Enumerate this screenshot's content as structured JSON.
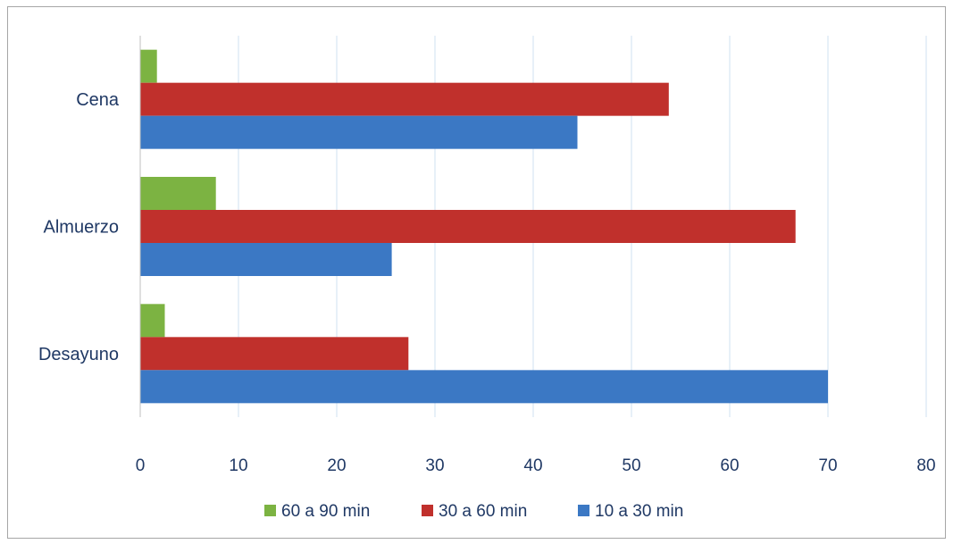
{
  "chart_data": {
    "type": "bar",
    "orientation": "horizontal",
    "categories": [
      "Desayuno",
      "Almuerzo",
      "Cena"
    ],
    "series": [
      {
        "name": "60 a 90 min",
        "color": "#7cb342",
        "values": [
          2.5,
          7.7,
          1.7
        ]
      },
      {
        "name": "30 a 60 min",
        "color": "#c0302c",
        "values": [
          27.3,
          66.7,
          53.8
        ]
      },
      {
        "name": "10 a 30 min",
        "color": "#3b78c4",
        "values": [
          70.0,
          25.6,
          44.5
        ]
      }
    ],
    "xlim": [
      0,
      80
    ],
    "xticks": [
      0,
      10,
      20,
      30,
      40,
      50,
      60,
      70,
      80
    ],
    "grid": true,
    "legend_position": "bottom",
    "title": "",
    "xlabel": "",
    "ylabel": ""
  }
}
